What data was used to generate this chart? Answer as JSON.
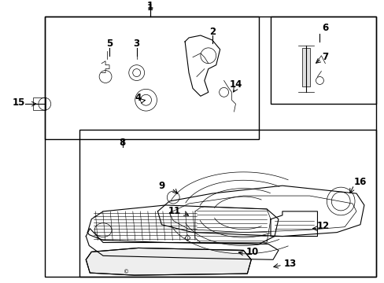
{
  "bg_color": "#ffffff",
  "line_color": "#000000",
  "text_color": "#000000",
  "fig_width": 4.89,
  "fig_height": 3.6,
  "dpi": 100
}
